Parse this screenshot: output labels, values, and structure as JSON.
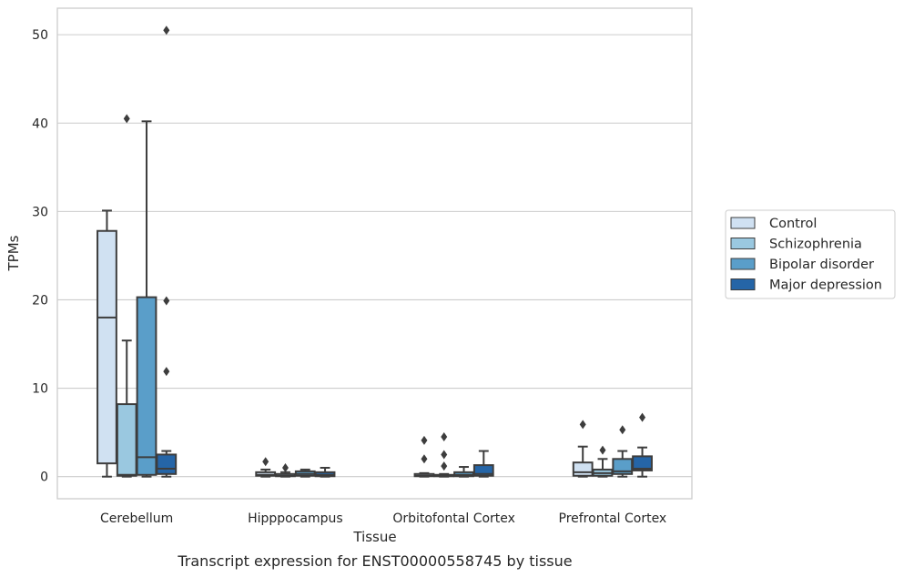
{
  "chart_data": {
    "type": "box",
    "xlabel": "Tissue",
    "ylabel": "TPMs",
    "caption": "Transcript expression for ENST00000558745 by tissue",
    "ylim": [
      -2.5,
      53
    ],
    "yticks": [
      0,
      10,
      20,
      30,
      40,
      50
    ],
    "grid": "horizontal",
    "legend_position": "right",
    "categories": [
      "Cerebellum",
      "Hipppocampus",
      "Orbitofontal Cortex",
      "Prefrontal Cortex"
    ],
    "series": [
      {
        "name": "Control",
        "color": "#d0e1f2",
        "boxes": [
          {
            "whislo": 0.0,
            "q1": 1.5,
            "med": 18.0,
            "q3": 27.8,
            "whishi": 30.1,
            "fliers": []
          },
          {
            "whislo": 0.0,
            "q1": 0.1,
            "med": 0.2,
            "q3": 0.5,
            "whishi": 0.8,
            "fliers": [
              1.7
            ]
          },
          {
            "whislo": 0.0,
            "q1": 0.05,
            "med": 0.1,
            "q3": 0.3,
            "whishi": 0.4,
            "fliers": [
              2.0,
              4.1
            ]
          },
          {
            "whislo": 0.0,
            "q1": 0.1,
            "med": 0.5,
            "q3": 1.6,
            "whishi": 3.4,
            "fliers": [
              5.9
            ]
          }
        ]
      },
      {
        "name": "Schizophrenia",
        "color": "#9ac8e0",
        "boxes": [
          {
            "whislo": 0.0,
            "q1": 0.1,
            "med": 0.2,
            "q3": 8.2,
            "whishi": 15.4,
            "fliers": [
              40.5
            ]
          },
          {
            "whislo": 0.0,
            "q1": 0.05,
            "med": 0.1,
            "q3": 0.3,
            "whishi": 0.5,
            "fliers": [
              1.0
            ]
          },
          {
            "whislo": 0.0,
            "q1": 0.05,
            "med": 0.1,
            "q3": 0.2,
            "whishi": 0.3,
            "fliers": [
              1.2,
              2.5,
              4.5
            ]
          },
          {
            "whislo": 0.0,
            "q1": 0.1,
            "med": 0.4,
            "q3": 0.8,
            "whishi": 2.0,
            "fliers": [
              3.0
            ]
          }
        ]
      },
      {
        "name": "Bipolar disorder",
        "color": "#5a9ec9",
        "boxes": [
          {
            "whislo": 0.0,
            "q1": 0.2,
            "med": 2.2,
            "q3": 20.3,
            "whishi": 40.2,
            "fliers": []
          },
          {
            "whislo": 0.0,
            "q1": 0.1,
            "med": 0.3,
            "q3": 0.6,
            "whishi": 0.8,
            "fliers": []
          },
          {
            "whislo": 0.0,
            "q1": 0.05,
            "med": 0.2,
            "q3": 0.5,
            "whishi": 1.1,
            "fliers": []
          },
          {
            "whislo": 0.0,
            "q1": 0.3,
            "med": 0.6,
            "q3": 2.0,
            "whishi": 2.9,
            "fliers": [
              5.3
            ]
          }
        ]
      },
      {
        "name": "Major depression",
        "color": "#2565a7",
        "boxes": [
          {
            "whislo": 0.0,
            "q1": 0.3,
            "med": 0.9,
            "q3": 2.5,
            "whishi": 2.9,
            "fliers": [
              11.9,
              19.9,
              50.5
            ]
          },
          {
            "whislo": 0.0,
            "q1": 0.05,
            "med": 0.2,
            "q3": 0.5,
            "whishi": 1.0,
            "fliers": []
          },
          {
            "whislo": 0.0,
            "q1": 0.1,
            "med": 0.3,
            "q3": 1.3,
            "whishi": 2.9,
            "fliers": []
          },
          {
            "whislo": 0.0,
            "q1": 0.7,
            "med": 0.9,
            "q3": 2.3,
            "whishi": 3.3,
            "fliers": [
              6.7
            ]
          }
        ]
      }
    ]
  }
}
